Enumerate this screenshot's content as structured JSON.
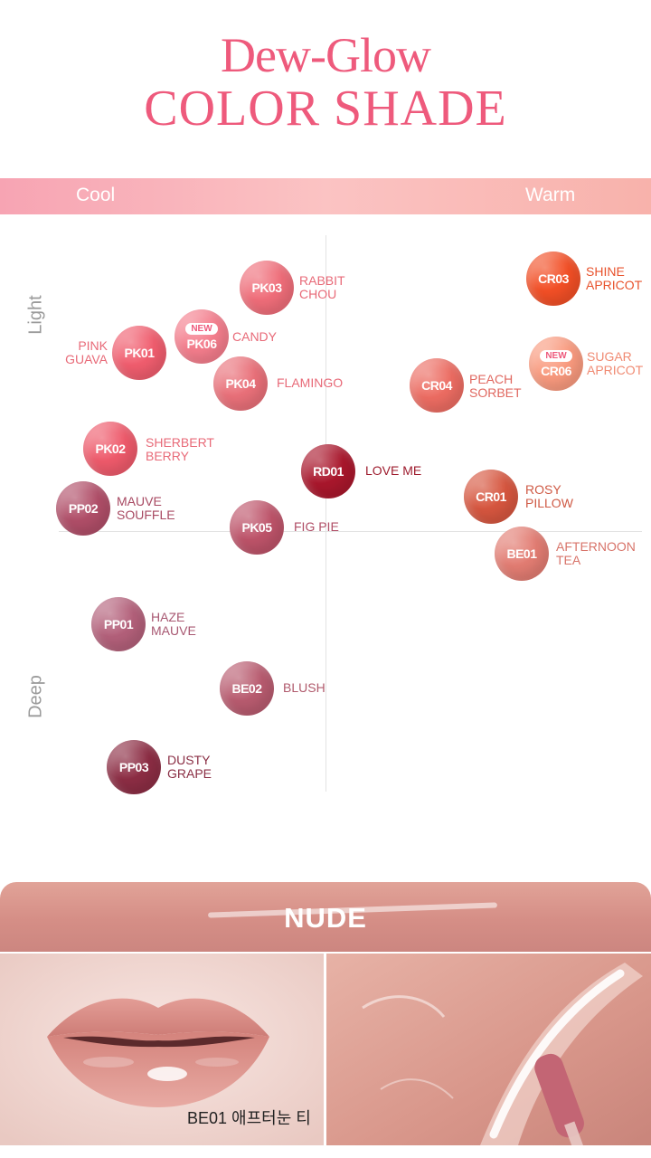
{
  "header": {
    "title_line1": "Dew-Glow",
    "title_line2": "COLOR SHADE"
  },
  "tone_axis": {
    "cool_label": "Cool",
    "warm_label": "Warm",
    "light_label": "Light",
    "deep_label": "Deep"
  },
  "colors": {
    "title": "#ee5a7c",
    "badge_text": "#ee5a7c"
  },
  "shades": [
    {
      "code": "PK03",
      "name": "RABBIT\nCHOU",
      "color": "#ef6d79",
      "name_color": "#e86a78"
    },
    {
      "code": "PK06",
      "name": "CANDY",
      "color": "#f47d8c",
      "name_color": "#e86a78",
      "badge": "NEW"
    },
    {
      "code": "PK01",
      "name": "PINK\nGUAVA",
      "color": "#f05d6e",
      "name_color": "#e86a78"
    },
    {
      "code": "PK04",
      "name": "FLAMINGO",
      "color": "#e97079",
      "name_color": "#e86a78"
    },
    {
      "code": "PK02",
      "name": "SHERBERT\nBERRY",
      "color": "#ee5a6b",
      "name_color": "#e86a78"
    },
    {
      "code": "PP02",
      "name": "MAUVE\nSOUFFLE",
      "color": "#b04e68",
      "name_color": "#a84a63"
    },
    {
      "code": "PK05",
      "name": "FIG PIE",
      "color": "#bd5369",
      "name_color": "#b04e66"
    },
    {
      "code": "RD01",
      "name": "LOVE ME",
      "color": "#a9172c",
      "name_color": "#9e1c2e"
    },
    {
      "code": "PP01",
      "name": "HAZE\nMAUVE",
      "color": "#b3607a",
      "name_color": "#a85872"
    },
    {
      "code": "BE02",
      "name": "BLUSH",
      "color": "#b85b6f",
      "name_color": "#b05a6c"
    },
    {
      "code": "PP03",
      "name": "DUSTY\nGRAPE",
      "color": "#8c2d44",
      "name_color": "#8a2e44"
    },
    {
      "code": "CR03",
      "name": "SHINE\nAPRICOT",
      "color": "#f24f26",
      "name_color": "#e8522c"
    },
    {
      "code": "CR06",
      "name": "SUGAR\nAPRICOT",
      "color": "#f99a7e",
      "name_color": "#f08a72",
      "badge": "NEW"
    },
    {
      "code": "CR04",
      "name": "PEACH\nSORBET",
      "color": "#ec6c62",
      "name_color": "#e06860"
    },
    {
      "code": "CR01",
      "name": "ROSY\nPILLOW",
      "color": "#d6563f",
      "name_color": "#cf5a45"
    },
    {
      "code": "BE01",
      "name": "AFTERNOON\nTEA",
      "color": "#e27c72",
      "name_color": "#d8746a"
    }
  ],
  "nude_section": {
    "title": "NUDE",
    "caption": "BE01 애프터눈 티"
  }
}
